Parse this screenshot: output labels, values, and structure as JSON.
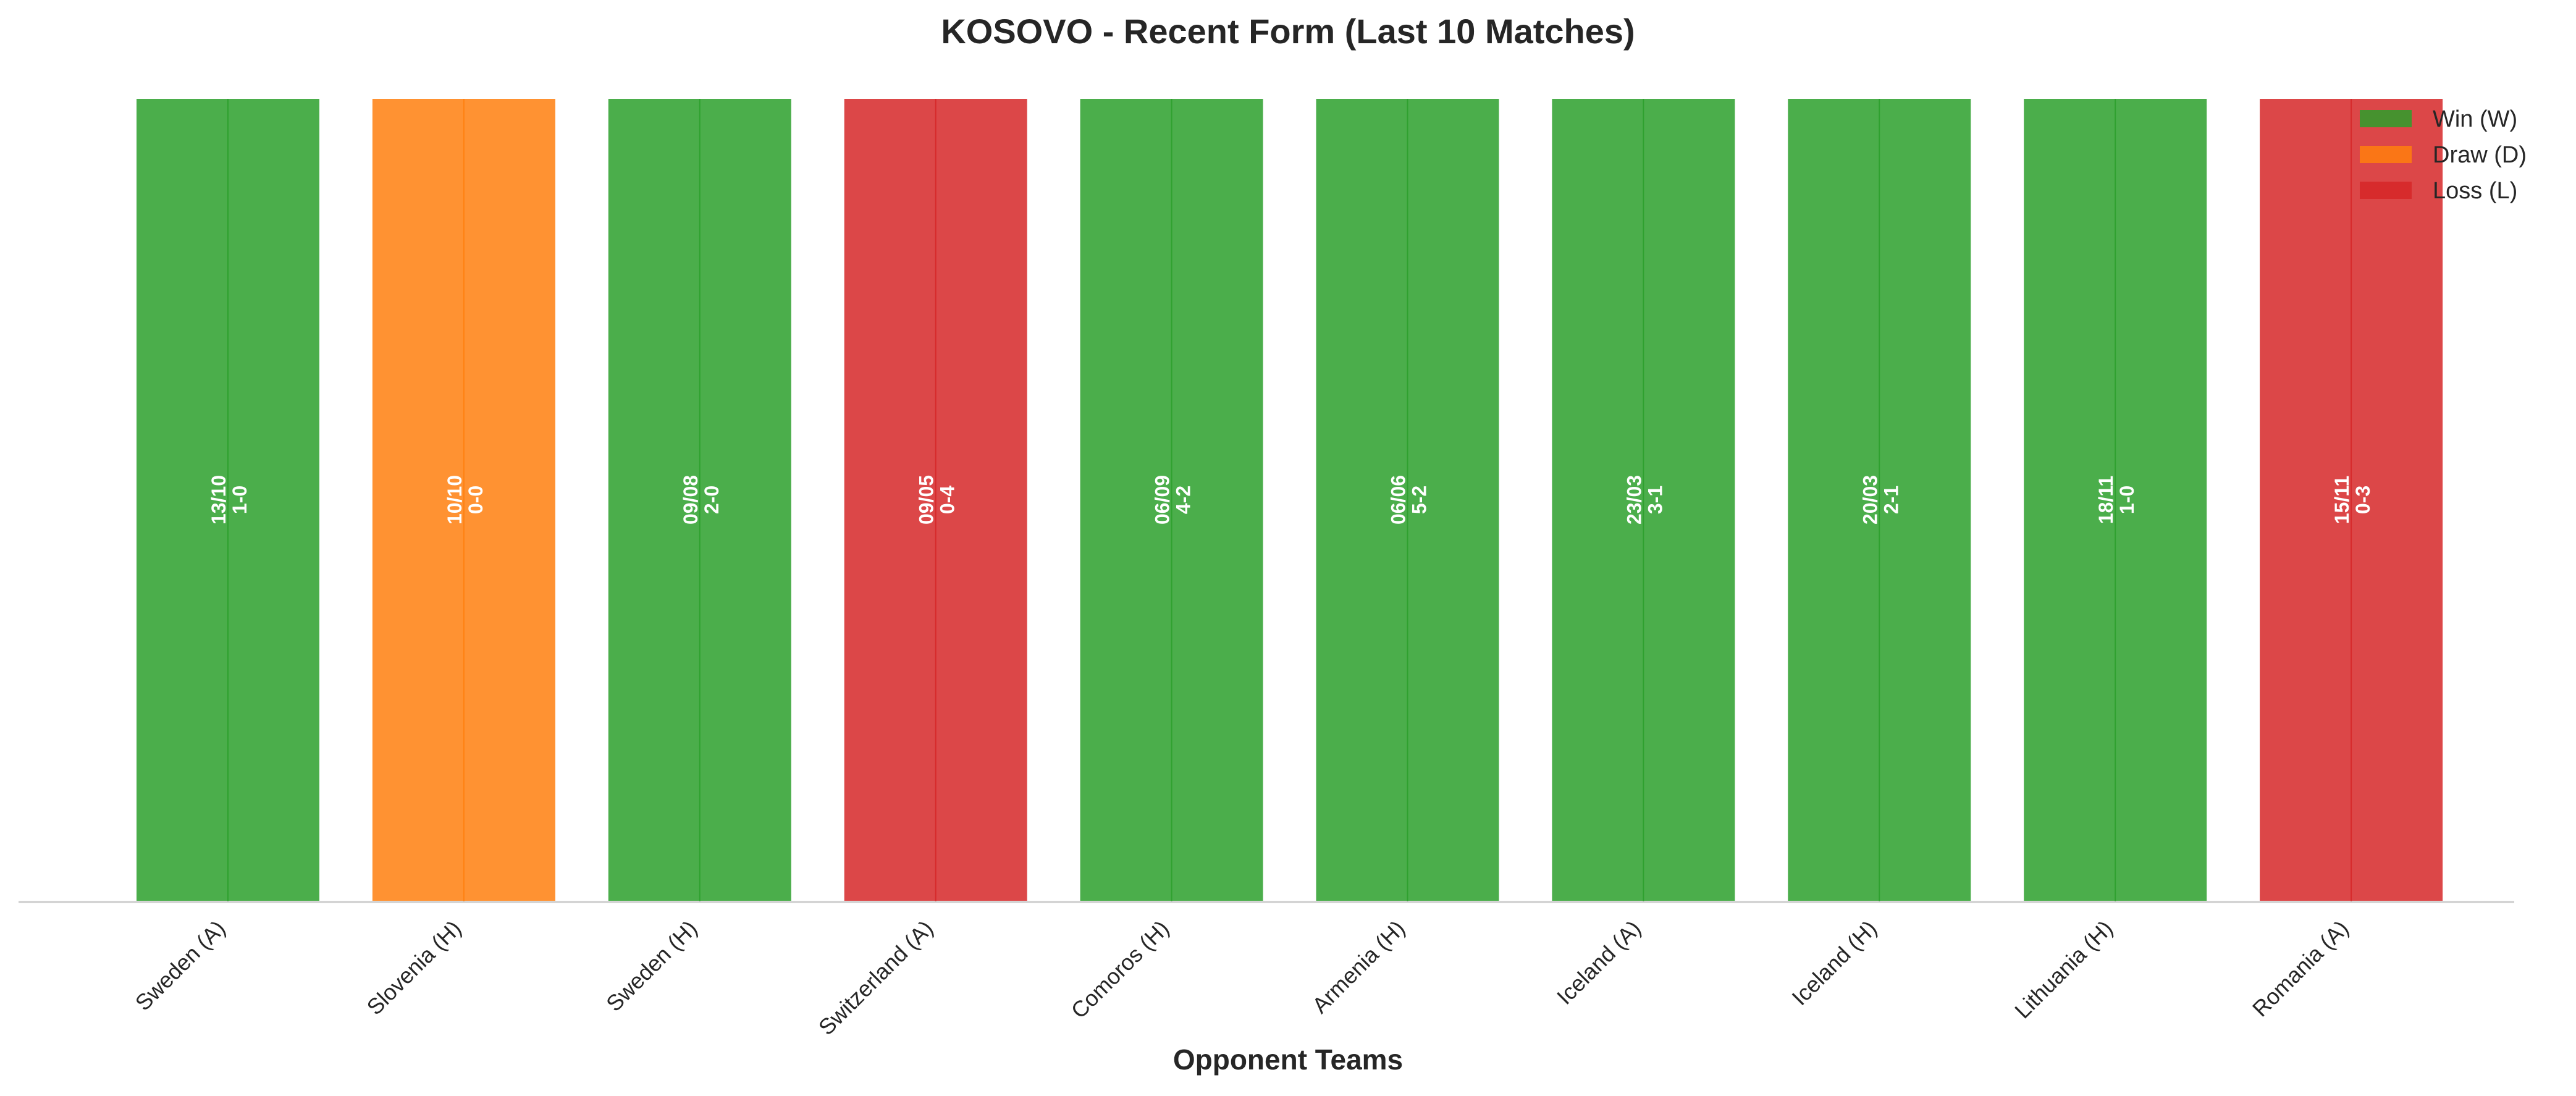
{
  "chart_data": {
    "type": "bar",
    "title": "KOSOVO - Recent Form (Last 10 Matches)",
    "xlabel": "Opponent Teams",
    "ylabel": "",
    "ylim": [
      0,
      1
    ],
    "grid": false,
    "legend_position": "top-right",
    "categories": [
      "Sweden (A)",
      "Slovenia (H)",
      "Sweden (H)",
      "Switzerland (A)",
      "Comoros (H)",
      "Armenia (H)",
      "Iceland (A)",
      "Iceland (H)",
      "Lithuania (H)",
      "Romania (A)"
    ],
    "values": [
      1,
      1,
      1,
      1,
      1,
      1,
      1,
      1,
      1,
      1
    ],
    "results": [
      "W",
      "D",
      "W",
      "L",
      "W",
      "W",
      "W",
      "W",
      "W",
      "L"
    ],
    "dates": [
      "13/10",
      "10/10",
      "09/08",
      "09/05",
      "06/09",
      "06/06",
      "23/03",
      "20/03",
      "18/11",
      "15/11"
    ],
    "scores": [
      "1-0",
      "0-0",
      "2-0",
      "0-4",
      "4-2",
      "5-2",
      "3-1",
      "2-1",
      "1-0",
      "0-3"
    ],
    "legend": [
      {
        "key": "W",
        "label": "Win (W)",
        "color": "#2ca02c"
      },
      {
        "key": "D",
        "label": "Draw (D)",
        "color": "#ff7f0e"
      },
      {
        "key": "L",
        "label": "Loss (L)",
        "color": "#d62728"
      }
    ],
    "colors": {
      "W": "#2ca02c",
      "D": "#ff7f0e",
      "L": "#d62728"
    }
  }
}
